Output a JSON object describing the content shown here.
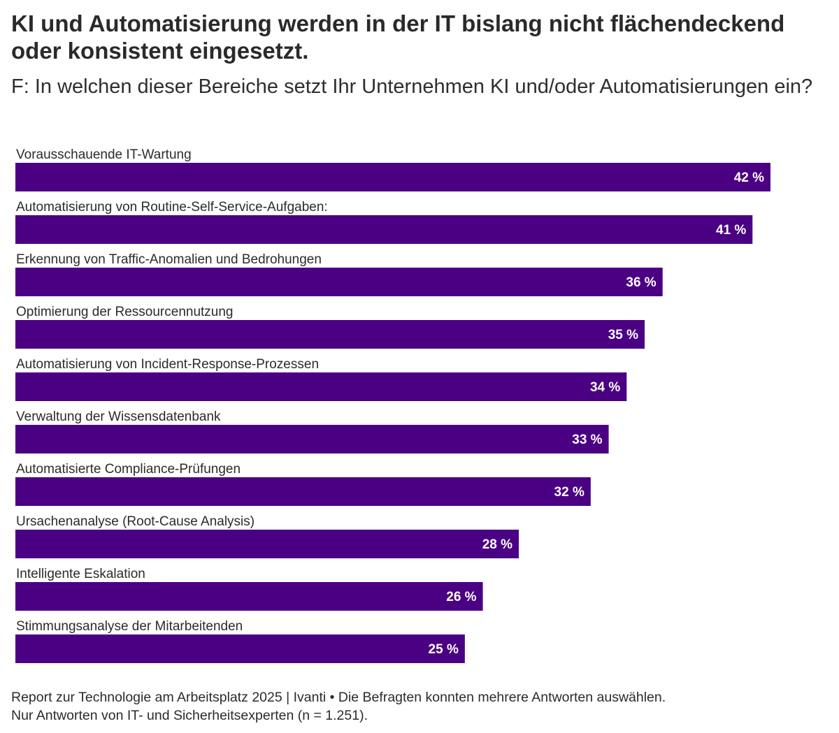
{
  "title": "KI und Automatisierung werden in der IT bislang nicht flächendeckend oder konsistent eingesetzt.",
  "subtitle": "F: In welchen dieser Bereiche setzt Ihr Unternehmen KI und/oder Automatisierungen ein?",
  "footer": {
    "line1": "Report zur Technologie am Arbeitsplatz 2025 | Ivanti • Die Befragten konnten mehrere Antworten auswählen.",
    "line2": "Nur Antworten von IT- und Sicherheitsexperten (n = 1.251)."
  },
  "colors": {
    "bar": "#4b0083",
    "value_text": "#ffffff"
  },
  "chart_data": {
    "type": "bar",
    "orientation": "horizontal",
    "categories": [
      "Vorausschauende IT-Wartung",
      "Automatisierung von Routine-Self-Service-Aufgaben:",
      "Erkennung von Traffic-Anomalien und Bedrohungen",
      "Optimierung der Ressourcennutzung",
      "Automatisierung von Incident-Response-Prozessen",
      "Verwaltung der Wissensdatenbank",
      "Automatisierte Compliance-Prüfungen",
      "Ursachenanalyse (Root-Cause Analysis)",
      "Intelligente Eskalation",
      "Stimmungsanalyse der Mitarbeitenden"
    ],
    "values": [
      42,
      41,
      36,
      35,
      34,
      33,
      32,
      28,
      26,
      25
    ],
    "value_labels": [
      "42 %",
      "41 %",
      "36 %",
      "35 %",
      "34 %",
      "33 %",
      "32 %",
      "28 %",
      "26 %",
      "25 %"
    ],
    "xlim": [
      0,
      42
    ],
    "grid": false,
    "legend": "none"
  }
}
